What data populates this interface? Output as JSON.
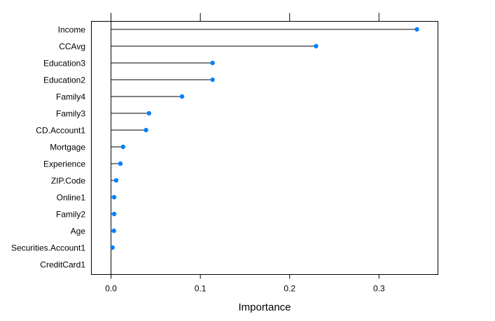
{
  "chart_data": {
    "type": "dotplot",
    "xlabel": "Importance",
    "xlim": [
      -0.022,
      0.366
    ],
    "xticks": [
      0.0,
      0.1,
      0.2,
      0.3
    ],
    "xtick_labels": [
      "0.0",
      "0.1",
      "0.2",
      "0.3"
    ],
    "ticks_on_top": true,
    "grid": false,
    "baseline": 0,
    "point_color": "#0080ff",
    "line_color": "#000000",
    "categories": [
      "Income",
      "CCAvg",
      "Education3",
      "Education2",
      "Family4",
      "Family3",
      "CD.Account1",
      "Mortgage",
      "Experience",
      "ZIP.Code",
      "Online1",
      "Family2",
      "Age",
      "Securities.Account1",
      "CreditCard1"
    ],
    "values": [
      0.3425,
      0.2295,
      0.1137,
      0.1137,
      0.0795,
      0.0425,
      0.0392,
      0.0135,
      0.0105,
      0.0058,
      0.0035,
      0.0035,
      0.0032,
      0.0017,
      0.0
    ]
  }
}
